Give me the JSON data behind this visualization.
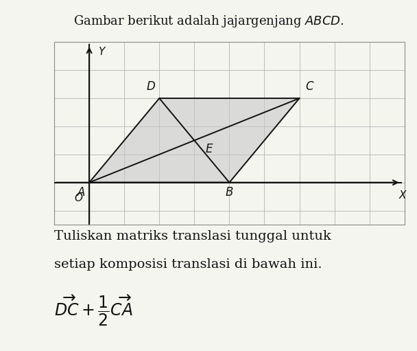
{
  "grid_color": "#bbbbbb",
  "grid_linewidth": 0.7,
  "background_color": "#f5f5f0",
  "plot_bg_color": "#f5f5f0",
  "parallelogram_fill": "#c8c8c8",
  "parallelogram_alpha": 0.6,
  "parallelogram_edgecolor": "#111111",
  "parallelogram_linewidth": 1.4,
  "diagonal_color": "#111111",
  "diagonal_linewidth": 1.4,
  "A": [
    0,
    1
  ],
  "B": [
    4,
    1
  ],
  "C": [
    6,
    4
  ],
  "D": [
    2,
    4
  ],
  "E": [
    3,
    2.5
  ],
  "xlim": [
    -1,
    9
  ],
  "ylim": [
    -0.5,
    6
  ],
  "axis_color": "#111111",
  "axis_linewidth": 1.5,
  "label_fontsize": 11,
  "point_label_fontsize": 12,
  "text_body_1": "Tuliskan matriks translasi tunggal untuk",
  "text_body_2": "setiap komposisi translasi di bawah ini.",
  "text_fontsize": 14,
  "formula_fontsize": 15,
  "fig_width": 6.08,
  "fig_height": 5.11,
  "dpi": 100
}
